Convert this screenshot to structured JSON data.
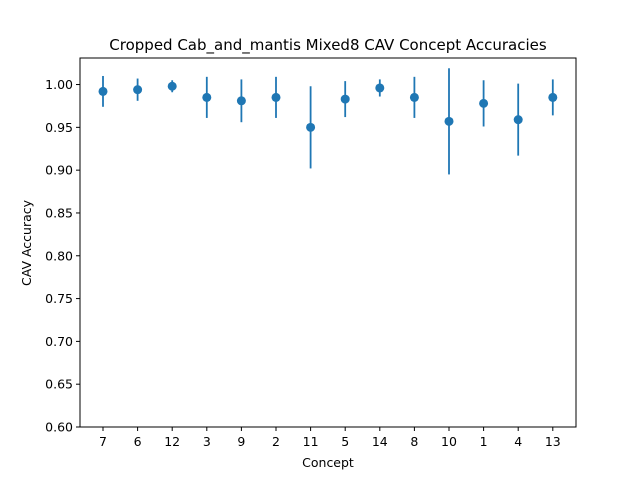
{
  "chart_data": {
    "type": "scatter",
    "title": "Cropped Cab_and_mantis Mixed8 CAV Concept Accuracies",
    "xlabel": "Concept",
    "ylabel": "CAV Accuracy",
    "ylim": [
      0.6,
      1.0
    ],
    "yticks": [
      "0.60",
      "0.65",
      "0.70",
      "0.75",
      "0.80",
      "0.85",
      "0.90",
      "0.95",
      "1.00"
    ],
    "categories": [
      "7",
      "6",
      "12",
      "3",
      "9",
      "2",
      "11",
      "5",
      "14",
      "8",
      "10",
      "1",
      "4",
      "13"
    ],
    "values": [
      0.992,
      0.994,
      0.998,
      0.985,
      0.981,
      0.985,
      0.95,
      0.983,
      0.996,
      0.985,
      0.957,
      0.978,
      0.959,
      0.985
    ],
    "errors": [
      0.018,
      0.013,
      0.007,
      0.024,
      0.025,
      0.024,
      0.048,
      0.021,
      0.01,
      0.024,
      0.062,
      0.027,
      0.042,
      0.021
    ],
    "color": "#1f77b4",
    "grid": false
  }
}
